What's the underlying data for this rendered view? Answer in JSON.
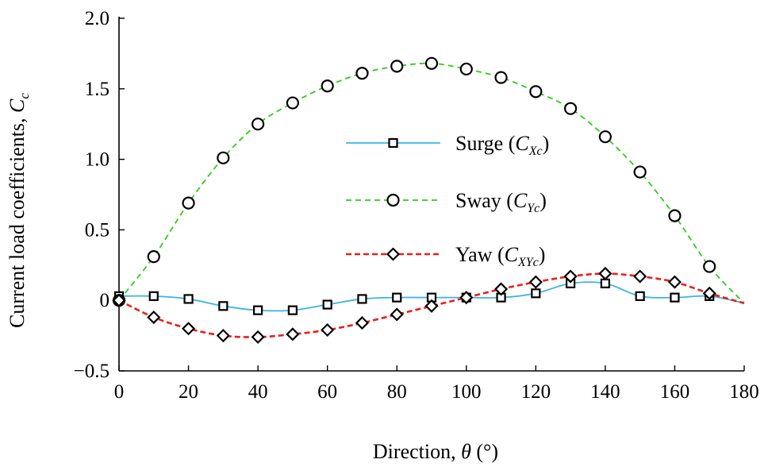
{
  "chart_data": {
    "type": "line",
    "title": "",
    "xlabel": "Direction, θ (°)",
    "ylabel": "Current load coefficients, C_c",
    "ylabel_parts": {
      "main": "Current load coefficients, ",
      "italic": "C",
      "sub": "c"
    },
    "xlabel_parts": {
      "pre": "Direction, ",
      "italic": "θ",
      "post": " (°)"
    },
    "xlim": [
      0,
      180
    ],
    "ylim": [
      -0.5,
      2.0
    ],
    "xticks": [
      0,
      20,
      40,
      60,
      80,
      100,
      120,
      140,
      160,
      180
    ],
    "xtick_labels": [
      "0",
      "20",
      "40",
      "60",
      "80",
      "100",
      "120",
      "140",
      "160",
      "180"
    ],
    "yticks": [
      -0.5,
      0,
      0.5,
      1.0,
      1.5,
      2.0
    ],
    "ytick_labels": [
      "−0.5",
      "0",
      "0.5",
      "1.0",
      "1.5",
      "2.0"
    ],
    "grid": false,
    "legend_position": "center-right",
    "series": [
      {
        "name": "Surge (C_Xc)",
        "label_main": "Surge (",
        "label_italic": "C",
        "label_sub": "Xc",
        "label_close": ")",
        "color": "#3ab4e6",
        "dash": "solid",
        "marker": "square",
        "x": [
          0,
          10,
          20,
          30,
          40,
          50,
          60,
          70,
          80,
          90,
          100,
          110,
          120,
          130,
          140,
          150,
          160,
          170
        ],
        "values": [
          0.03,
          0.03,
          0.01,
          -0.04,
          -0.07,
          -0.07,
          -0.03,
          0.01,
          0.02,
          0.02,
          0.02,
          0.02,
          0.05,
          0.12,
          0.12,
          0.03,
          0.02,
          0.03
        ]
      },
      {
        "name": "Sway (C_Yc)",
        "label_main": "Sway (",
        "label_italic": "C",
        "label_sub": "Yc",
        "label_close": ")",
        "color": "#2ecc1a",
        "dash": "dashed",
        "marker": "circle",
        "x": [
          0,
          10,
          20,
          30,
          40,
          50,
          60,
          70,
          80,
          90,
          100,
          110,
          120,
          130,
          140,
          150,
          160,
          170
        ],
        "values": [
          0.0,
          0.31,
          0.69,
          1.01,
          1.25,
          1.4,
          1.52,
          1.61,
          1.66,
          1.68,
          1.64,
          1.58,
          1.48,
          1.36,
          1.16,
          0.91,
          0.6,
          0.24
        ]
      },
      {
        "name": "Yaw (C_XYc)",
        "label_main": "Yaw (",
        "label_italic": "C",
        "label_sub": "XYc",
        "label_close": ")",
        "color": "#e8201c",
        "dash": "dashed",
        "marker": "diamond",
        "x": [
          0,
          10,
          20,
          30,
          40,
          50,
          60,
          70,
          80,
          90,
          100,
          110,
          120,
          130,
          140,
          150,
          160,
          170
        ],
        "values": [
          0.0,
          -0.12,
          -0.2,
          -0.25,
          -0.26,
          -0.24,
          -0.21,
          -0.16,
          -0.1,
          -0.04,
          0.02,
          0.08,
          0.13,
          0.17,
          0.19,
          0.17,
          0.13,
          0.05
        ]
      }
    ]
  }
}
